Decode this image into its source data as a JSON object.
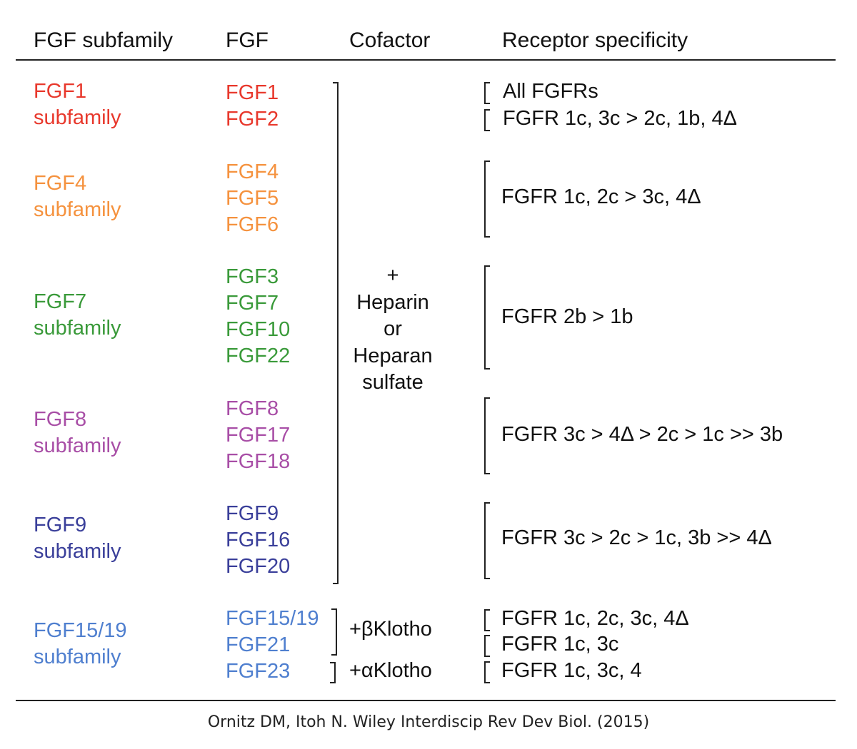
{
  "headers": {
    "subfamily": "FGF subfamily",
    "fgf": "FGF",
    "cofactor": "Cofactor",
    "receptor": "Receptor specificity"
  },
  "groups": [
    {
      "subfamily": [
        "FGF1",
        "subfamily"
      ],
      "color": "#e8382c",
      "fgfs": [
        "FGF1",
        "FGF2"
      ],
      "receptors": [
        "All FGFRs",
        "FGFR 1c, 3c > 2c, 1b, 4Δ"
      ]
    },
    {
      "subfamily": [
        "FGF4",
        "subfamily"
      ],
      "color": "#f5923e",
      "fgfs": [
        "FGF4",
        "FGF5",
        "FGF6"
      ],
      "receptors": [
        "FGFR 1c, 2c > 3c, 4Δ"
      ]
    },
    {
      "subfamily": [
        "FGF7",
        "subfamily"
      ],
      "color": "#3a9a3a",
      "fgfs": [
        "FGF3",
        "FGF7",
        "FGF10",
        "FGF22"
      ],
      "receptors": [
        "FGFR 2b > 1b"
      ]
    },
    {
      "subfamily": [
        "FGF8",
        "subfamily"
      ],
      "color": "#a84ea6",
      "fgfs": [
        "FGF8",
        "FGF17",
        "FGF18"
      ],
      "receptors": [
        "FGFR 3c > 4Δ > 2c > 1c >> 3b"
      ]
    },
    {
      "subfamily": [
        "FGF9",
        "subfamily"
      ],
      "color": "#3a3f9a",
      "fgfs": [
        "FGF9",
        "FGF16",
        "FGF20"
      ],
      "receptors": [
        "FGFR 3c > 2c > 1c, 3b >> 4Δ"
      ]
    },
    {
      "subfamily": [
        "FGF15/19",
        "subfamily"
      ],
      "color": "#4f7fcf",
      "fgfs": [
        "FGF15/19",
        "FGF21",
        "FGF23"
      ],
      "receptors": [
        "FGFR 1c, 2c, 3c, 4Δ",
        "FGFR 1c, 3c",
        "FGFR 1c, 3c, 4"
      ]
    }
  ],
  "cofactors": {
    "heparin": [
      "+",
      "Heparin",
      "or",
      "Heparan",
      "sulfate"
    ],
    "beta_klotho": "+βKlotho",
    "alpha_klotho": "+αKlotho"
  },
  "citation": "Ornitz DM, Itoh N. Wiley Interdiscip Rev Dev Biol. (2015)"
}
